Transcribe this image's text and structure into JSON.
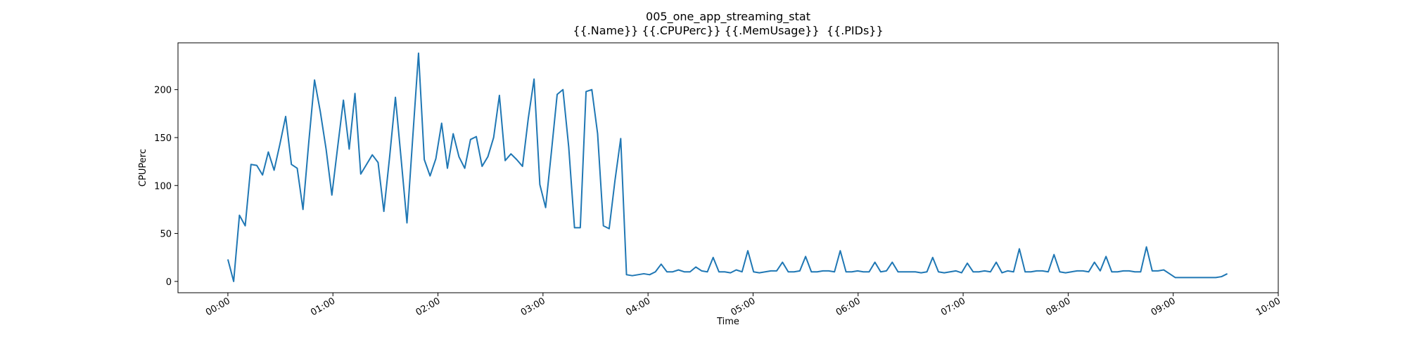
{
  "chart_data": {
    "type": "line",
    "title": [
      "005_one_app_streaming_stat",
      "{{.Name}} {{.CPUPerc}} {{.MemUsage}}  {{.PIDs}}"
    ],
    "xlabel": "Time",
    "ylabel": "CPUPerc",
    "color": "#1f77b4",
    "x": [
      0,
      3.3,
      6.6,
      9.9,
      13.2,
      16.5,
      19.8,
      23.1,
      26.4,
      29.7,
      33,
      36.3,
      39.6,
      42.9,
      46.2,
      49.5,
      52.8,
      56.1,
      59.4,
      62.7,
      66,
      69.3,
      72.6,
      75.9,
      79.2,
      82.5,
      85.8,
      89.1,
      92.4,
      95.7,
      99,
      102.3,
      105.6,
      108.9,
      112.2,
      115.5,
      118.8,
      122.1,
      125.4,
      128.7,
      132,
      135.3,
      138.6,
      141.9,
      145.2,
      148.5,
      151.8,
      155.1,
      158.4,
      161.7,
      165,
      168.3,
      171.6,
      174.9,
      178.2,
      181.5,
      184.8,
      188.1,
      191.4,
      194.7,
      198,
      201.3,
      204.6,
      207.9,
      211.2,
      214.5,
      217.8,
      221.1,
      224.4,
      227.7,
      231,
      234.3,
      237.6,
      240.9,
      244.2,
      247.5,
      250.8,
      254.1,
      257.4,
      260.7,
      264,
      267.3,
      270.6,
      273.9,
      277.2,
      280.5,
      283.8,
      287.1,
      290.4,
      293.7,
      297,
      300.3,
      303.6,
      306.9,
      310.2,
      313.5,
      316.8,
      320.1,
      323.4,
      326.7,
      330,
      333.3,
      336.6,
      339.9,
      343.2,
      346.5,
      349.8,
      353.1,
      356.4,
      359.7,
      363,
      366.3,
      369.6,
      372.9,
      376.2,
      379.5,
      382.8,
      386.1,
      389.4,
      392.7,
      396,
      399.3,
      402.6,
      405.9,
      409.2,
      412.5,
      415.8,
      419.1,
      422.4,
      425.7,
      429,
      432.3,
      435.6,
      438.9,
      442.2,
      445.5,
      448.8,
      452.1,
      455.4,
      458.7,
      462,
      465.3,
      468.6,
      471.9,
      475.2,
      478.5,
      481.8,
      485.1,
      488.4,
      491.7,
      495,
      498.3,
      501.6,
      504.9,
      508.2,
      511.5,
      514.8,
      518.1,
      521.4,
      524.7,
      528,
      531.3,
      534.6,
      537.9,
      541.2,
      544.5,
      547.8,
      551.1,
      554.4,
      557.7,
      561,
      564.3,
      567.6,
      570.9
    ],
    "values": [
      23,
      0,
      69,
      58,
      122,
      121,
      111,
      135,
      116,
      143,
      172,
      122,
      118,
      75,
      145,
      210,
      177,
      138,
      90,
      140,
      189,
      138,
      196,
      112,
      122,
      132,
      124,
      73,
      130,
      192,
      127,
      61,
      150,
      238,
      127,
      110,
      128,
      165,
      118,
      154,
      130,
      118,
      148,
      151,
      120,
      130,
      150,
      194,
      126,
      133,
      127,
      120,
      170,
      211,
      101,
      77,
      135,
      195,
      200,
      140,
      56,
      56,
      198,
      200,
      154,
      58,
      55,
      105,
      149,
      7,
      6,
      7,
      8,
      7,
      10,
      18,
      10,
      10,
      12,
      10,
      10,
      15,
      11,
      10,
      25,
      10,
      10,
      9,
      12,
      10,
      32,
      10,
      9,
      10,
      11,
      11,
      20,
      10,
      10,
      11,
      26,
      10,
      10,
      11,
      11,
      10,
      32,
      10,
      10,
      11,
      10,
      10,
      20,
      10,
      11,
      20,
      10,
      10,
      10,
      10,
      9,
      10,
      25,
      10,
      9,
      10,
      11,
      9,
      19,
      10,
      10,
      11,
      10,
      20,
      9,
      11,
      10,
      34,
      10,
      10,
      11,
      11,
      10,
      28,
      10,
      9,
      10,
      11,
      11,
      10,
      20,
      11,
      26,
      10,
      10,
      11,
      11,
      10,
      10,
      36,
      11,
      11,
      12,
      8,
      4,
      4,
      4,
      4,
      4,
      4,
      4,
      4,
      5,
      8
    ],
    "xlim": [
      -28.5,
      600
    ],
    "xticks": [
      {
        "value": 0,
        "label": "00:00"
      },
      {
        "value": 60,
        "label": "01:00"
      },
      {
        "value": 120,
        "label": "02:00"
      },
      {
        "value": 180,
        "label": "03:00"
      },
      {
        "value": 240,
        "label": "04:00"
      },
      {
        "value": 300,
        "label": "05:00"
      },
      {
        "value": 360,
        "label": "06:00"
      },
      {
        "value": 420,
        "label": "07:00"
      },
      {
        "value": 480,
        "label": "08:00"
      },
      {
        "value": 540,
        "label": "09:00"
      },
      {
        "value": 600,
        "label": "10:00"
      }
    ],
    "ylim": [
      -11.8,
      248.8
    ],
    "yticks": [
      0,
      50,
      100,
      150,
      200
    ]
  }
}
